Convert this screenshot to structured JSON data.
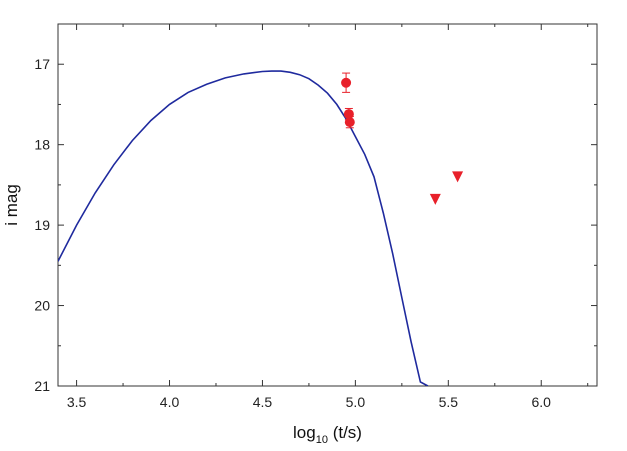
{
  "chart_data": {
    "type": "scatter",
    "title": "",
    "xlabel_main": "log",
    "xlabel_sub": "10",
    "xlabel_rest": " (t/s)",
    "ylabel": "i mag",
    "xlim": [
      3.4,
      6.3
    ],
    "ylim": [
      16.5,
      21.0
    ],
    "y_inverted": true,
    "grid": false,
    "x_ticks": [
      3.5,
      4.0,
      4.5,
      5.0,
      5.5,
      6.0
    ],
    "x_tick_labels": [
      "3.5",
      "4.0",
      "4.5",
      "5.0",
      "5.5",
      "6.0"
    ],
    "y_ticks": [
      17,
      18,
      19,
      20,
      21
    ],
    "y_tick_labels": [
      "17",
      "18",
      "19",
      "20",
      "21"
    ],
    "series": [
      {
        "kind": "line",
        "color": "#1f2a9e",
        "x": [
          3.4,
          3.5,
          3.6,
          3.7,
          3.8,
          3.9,
          4.0,
          4.1,
          4.2,
          4.3,
          4.4,
          4.5,
          4.55,
          4.6,
          4.65,
          4.7,
          4.75,
          4.8,
          4.85,
          4.9,
          4.95,
          5.0,
          5.05,
          5.1,
          5.15,
          5.2,
          5.25,
          5.3,
          5.35,
          5.39
        ],
        "y": [
          19.45,
          19.0,
          18.6,
          18.25,
          17.95,
          17.7,
          17.5,
          17.35,
          17.25,
          17.17,
          17.12,
          17.09,
          17.085,
          17.085,
          17.1,
          17.13,
          17.18,
          17.26,
          17.36,
          17.5,
          17.68,
          17.9,
          18.12,
          18.4,
          18.85,
          19.35,
          19.9,
          20.45,
          20.95,
          21.0
        ]
      },
      {
        "kind": "points",
        "marker": "circle",
        "color": "#e8202a",
        "x": [
          4.95,
          4.965,
          4.97
        ],
        "y": [
          17.23,
          17.62,
          17.72
        ],
        "yerr": [
          0.12,
          0.07,
          0.07
        ]
      },
      {
        "kind": "points",
        "marker": "triangle-down",
        "color": "#e8202a",
        "x": [
          5.43,
          5.55
        ],
        "y": [
          18.68,
          18.4
        ]
      }
    ]
  }
}
